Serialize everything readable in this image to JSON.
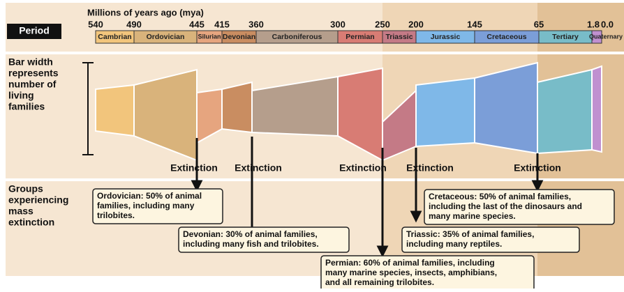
{
  "header": {
    "period_label": "Period",
    "axis_title": "Millions of years ago (mya)"
  },
  "ticks": [
    "540",
    "490",
    "445",
    "415",
    "360",
    "300",
    "250",
    "200",
    "145",
    "65",
    "1.8",
    "0.0"
  ],
  "periods": [
    "Cambrian",
    "Ordovician",
    "Silurian",
    "Devonian",
    "Carboniferous",
    "Permian",
    "Triassic",
    "Jurassic",
    "Cretaceous",
    "Tertiary",
    "Quaternary"
  ],
  "side_labels": {
    "bar": [
      "Bar width",
      "represents",
      "number of",
      "living",
      "families"
    ],
    "groups": [
      "Groups",
      "experiencing",
      "mass",
      "extinction"
    ]
  },
  "extinctions": [
    "Extinction",
    "Extinction",
    "Extinction",
    "Extinction",
    "Extinction"
  ],
  "boxes": [
    {
      "lines": [
        "Ordovician: 50% of animal",
        "families, including many",
        "trilobites."
      ]
    },
    {
      "lines": [
        "Devonian: 30% of animal families,",
        "including many fish and trilobites."
      ]
    },
    {
      "lines": [
        "Permian: 60% of animal families, including",
        "many marine species, insects, amphibians,",
        "and all remaining trilobites."
      ]
    },
    {
      "lines": [
        "Triassic: 35% of animal families,",
        "including many reptiles."
      ]
    },
    {
      "lines": [
        "Cretaceous: 50% of animal families,",
        "including the last of the dinosaurs and",
        "many marine species."
      ]
    }
  ]
}
